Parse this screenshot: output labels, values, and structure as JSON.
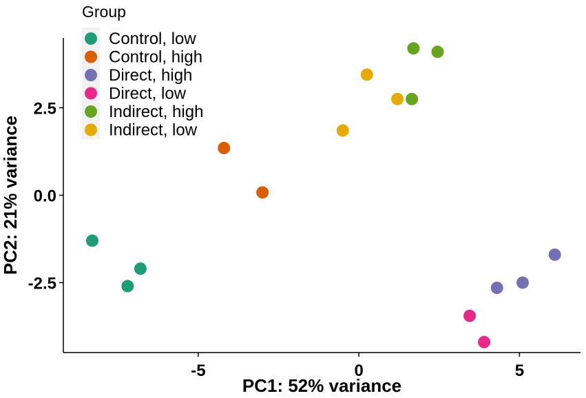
{
  "chart_data": {
    "type": "scatter",
    "title": "",
    "xlabel": "PC1: 52% variance",
    "ylabel": "PC2: 21% variance",
    "xlim": [
      -9.2,
      6.9
    ],
    "ylim": [
      -4.5,
      4.5
    ],
    "x_ticks": [
      -5,
      0,
      5
    ],
    "x_tick_labels": [
      "-5",
      "0",
      "5"
    ],
    "y_ticks": [
      -2.5,
      0.0,
      2.5
    ],
    "y_tick_labels": [
      "-2.5",
      "0.0",
      "2.5"
    ],
    "grid": false,
    "legend": {
      "title": "Group",
      "position": "top-left"
    },
    "series": [
      {
        "name": "Control, low",
        "color": "#1b9e77",
        "points": [
          [
            -8.3,
            -1.3
          ],
          [
            -6.8,
            -2.1
          ],
          [
            -7.2,
            -2.6
          ]
        ]
      },
      {
        "name": "Control, high",
        "color": "#d95f02",
        "points": [
          [
            -4.2,
            1.35
          ],
          [
            -3.0,
            0.08
          ]
        ]
      },
      {
        "name": "Direct, high",
        "color": "#7570b3",
        "points": [
          [
            6.1,
            -1.7
          ],
          [
            5.1,
            -2.5
          ],
          [
            4.3,
            -2.65
          ]
        ]
      },
      {
        "name": "Direct, low",
        "color": "#e7298a",
        "points": [
          [
            3.45,
            -3.45
          ],
          [
            3.9,
            -4.2
          ]
        ]
      },
      {
        "name": "Indirect, high",
        "color": "#66a61e",
        "points": [
          [
            1.7,
            4.2
          ],
          [
            2.45,
            4.1
          ],
          [
            1.65,
            2.75
          ]
        ]
      },
      {
        "name": "Indirect, low",
        "color": "#e6ab02",
        "points": [
          [
            0.25,
            3.45
          ],
          [
            1.2,
            2.75
          ],
          [
            -0.5,
            1.85
          ]
        ]
      }
    ]
  }
}
